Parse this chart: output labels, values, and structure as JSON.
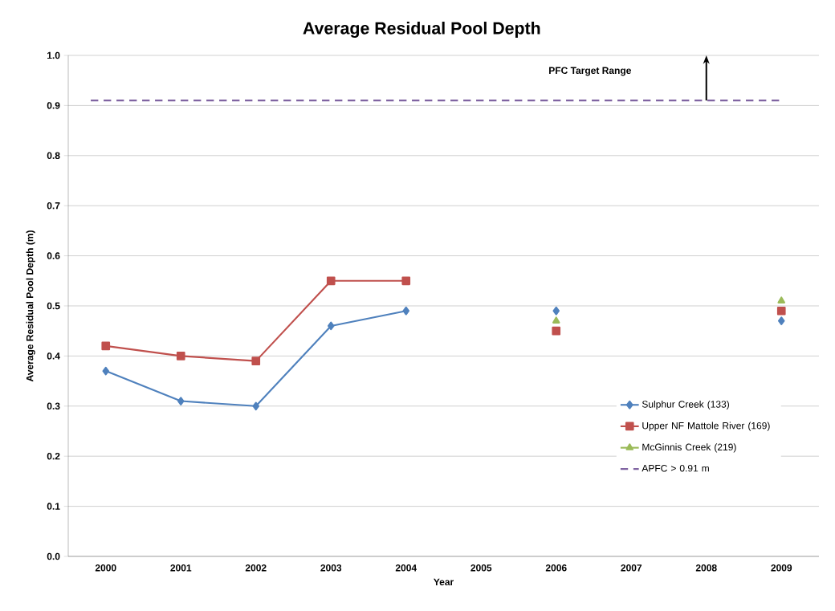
{
  "chart_data": {
    "type": "line",
    "title": "Average Residual Pool Depth",
    "xlabel": "Year",
    "ylabel": "Average Residual Pool Depth (m)",
    "categories": [
      "2000",
      "2001",
      "2002",
      "2003",
      "2004",
      "2005",
      "2006",
      "2007",
      "2008",
      "2009"
    ],
    "series": [
      {
        "name": "Sulphur Creek  (133)",
        "color": "#4f81bd",
        "marker": "diamond",
        "values": [
          0.37,
          0.31,
          0.3,
          0.46,
          0.49,
          null,
          0.49,
          null,
          null,
          0.47
        ]
      },
      {
        "name": "Upper NF Mattole River (169)",
        "color": "#c0504d",
        "marker": "square",
        "values": [
          0.42,
          0.4,
          0.39,
          0.55,
          0.55,
          null,
          0.45,
          null,
          null,
          0.49
        ]
      },
      {
        "name": "McGinnis Creek (219)",
        "color": "#9bbb59",
        "marker": "triangle",
        "values": [
          null,
          null,
          null,
          null,
          null,
          null,
          0.47,
          null,
          null,
          0.51
        ]
      }
    ],
    "ref_lines": [
      {
        "axis": "y",
        "value": 0.91,
        "label": "APFC > 0.91 m",
        "color": "#8064a2",
        "line_style": "dashed"
      }
    ],
    "annotations": [
      "PFC Target Range"
    ],
    "ylim": [
      0,
      1.0
    ],
    "yticks": [
      {
        "value": 0,
        "label": "0.0"
      },
      0.1,
      0.2,
      0.3,
      0.4,
      0.5,
      0.6,
      0.7,
      0.8,
      0.9,
      {
        "value": 1.0,
        "label": "1.0"
      }
    ],
    "grid": "y",
    "legend": "bottom right"
  }
}
